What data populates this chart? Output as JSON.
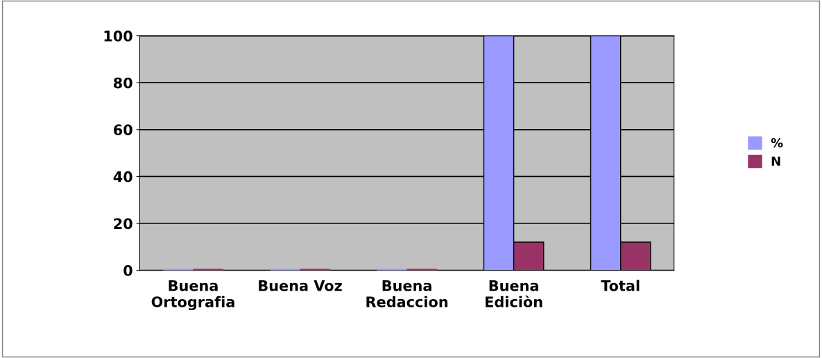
{
  "chart_data": {
    "type": "bar",
    "categories": [
      "Buena\nOrtografia",
      "Buena Voz",
      "Buena\nRedaccion",
      "Buena\nEdiciòn",
      "Total"
    ],
    "series": [
      {
        "name": "%",
        "color": "#9999ff",
        "values": [
          0,
          0,
          0,
          100,
          100
        ]
      },
      {
        "name": "N",
        "color": "#993366",
        "values": [
          0,
          0,
          0,
          12,
          12
        ]
      }
    ],
    "ylim": [
      0,
      100
    ],
    "yticks": [
      0,
      20,
      40,
      60,
      80,
      100
    ],
    "grid": "y",
    "legend": "right"
  }
}
